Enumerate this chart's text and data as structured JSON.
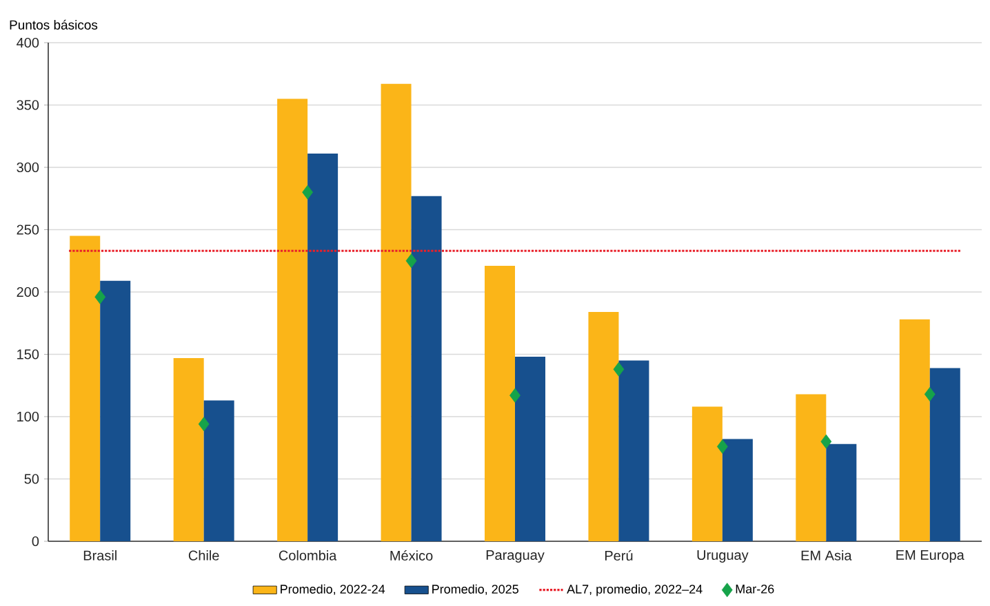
{
  "chart_data": {
    "type": "bar",
    "ylabel": "Puntos básicos",
    "categories": [
      "Brasil",
      "Chile",
      "Colombia",
      "México",
      "Paraguay",
      "Perú",
      "Uruguay",
      "EM Asia",
      "EM Europa"
    ],
    "series": [
      {
        "name": "Promedio, 2022-24",
        "color": "#fbb518",
        "values": [
          245,
          147,
          355,
          367,
          221,
          184,
          108,
          118,
          178
        ]
      },
      {
        "name": "Promedio, 2025",
        "color": "#17508e",
        "values": [
          209,
          113,
          311,
          277,
          148,
          145,
          82,
          78,
          139
        ]
      },
      {
        "name": "Mar-26",
        "type": "scatter",
        "color": "#16a34a",
        "marker": "diamond",
        "x": [
          "Brasil",
          "Chile",
          "Colombia",
          "México",
          "Paraguay",
          "Perú",
          "Uruguay",
          "EM Asia",
          "EM Europa"
        ],
        "values": [
          196,
          94,
          280,
          225,
          117,
          138,
          76,
          80,
          118
        ]
      }
    ],
    "ref_lines": [
      {
        "axis": "y",
        "value": 233,
        "label": "AL7, promedio, 2022–24",
        "color": "#e8202a",
        "line_style": "dotted"
      }
    ],
    "ylim": [
      0,
      400
    ],
    "yticks": [
      0,
      50,
      100,
      150,
      200,
      250,
      300,
      350,
      400
    ],
    "grid": "y",
    "legend": "bottom"
  }
}
